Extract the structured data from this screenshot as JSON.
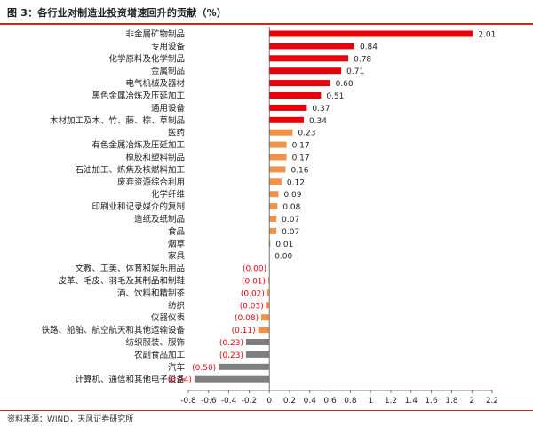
{
  "title": "图 3：各行业对制造业投资增速回升的贡献（%）",
  "source": "资料来源：WIND，天风证券研究所",
  "colors": {
    "red": "#e8000b",
    "orange": "#f0924a",
    "gray": "#7f7f7f",
    "negative_label": "#e8000b"
  },
  "chart_data": {
    "type": "bar",
    "orientation": "horizontal",
    "xlim": [
      -0.8,
      2.2
    ],
    "xticks": [
      "-0.8",
      "-0.6",
      "-0.4",
      "-0.2",
      "0",
      "0.2",
      "0.4",
      "0.6",
      "0.8",
      "1",
      "1.2",
      "1.4",
      "1.6",
      "1.8",
      "2",
      "2.2"
    ],
    "grid": false,
    "categories": [
      "非金属矿物制品",
      "专用设备",
      "化学原料及化学制品",
      "金属制品",
      "电气机械及器材",
      "黑色金属冶炼及压延加工",
      "通用设备",
      "木材加工及木、竹、藤、棕、草制品",
      "医药",
      "有色金属冶炼及压延加工",
      "橡胶和塑料制品",
      "石油加工、炼焦及核燃料加工",
      "废弃资源综合利用",
      "化学纤维",
      "印刷业和记录媒介的复制",
      "造纸及纸制品",
      "食品",
      "烟草",
      "家具",
      "文教、工美、体育和娱乐用品",
      "皮革、毛皮、羽毛及其制品和制鞋",
      "酒、饮料和精制茶",
      "纺织",
      "仪器仪表",
      "铁路、船舶、航空航天和其他运输设备",
      "纺织服装、服饰",
      "农副食品加工",
      "汽车",
      "计算机、通信和其他电子设备"
    ],
    "values": [
      2.01,
      0.84,
      0.78,
      0.71,
      0.6,
      0.51,
      0.37,
      0.34,
      0.23,
      0.17,
      0.17,
      0.16,
      0.12,
      0.09,
      0.08,
      0.07,
      0.07,
      0.01,
      0.0,
      -0.001,
      -0.01,
      -0.02,
      -0.03,
      -0.08,
      -0.11,
      -0.23,
      -0.23,
      -0.5,
      -0.74
    ],
    "labels": [
      "2.01",
      "0.84",
      "0.78",
      "0.71",
      "0.60",
      "0.51",
      "0.37",
      "0.34",
      "0.23",
      "0.17",
      "0.17",
      "0.16",
      "0.12",
      "0.09",
      "0.08",
      "0.07",
      "0.07",
      "0.01",
      "0.00",
      "(0.00)",
      "(0.01)",
      "(0.02)",
      "(0.03)",
      "(0.08)",
      "(0.11)",
      "(0.23)",
      "(0.23)",
      "(0.50)",
      "(0.74)"
    ],
    "bar_colors": [
      "red",
      "red",
      "red",
      "red",
      "red",
      "red",
      "red",
      "red",
      "orange",
      "orange",
      "orange",
      "orange",
      "orange",
      "orange",
      "orange",
      "orange",
      "orange",
      "orange",
      "orange",
      "orange",
      "orange",
      "orange",
      "orange",
      "orange",
      "orange",
      "gray",
      "gray",
      "gray",
      "gray"
    ]
  }
}
